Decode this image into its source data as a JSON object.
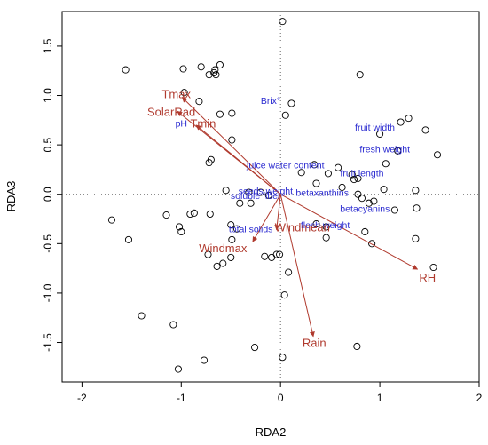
{
  "chart_data": {
    "type": "scatter",
    "title": "",
    "xlabel": "RDA2",
    "ylabel": "RDA3",
    "xlim": [
      -2.2,
      2.0
    ],
    "ylim": [
      -1.9,
      1.85
    ],
    "xticks": [
      -2,
      -1,
      0,
      1,
      2
    ],
    "yticks": [
      -1.5,
      -1.0,
      -0.5,
      0.0,
      0.5,
      1.0,
      1.5
    ],
    "xtick_labels": [
      "-2",
      "-1",
      "0",
      "1",
      "2"
    ],
    "ytick_labels": [
      "-1.5",
      "-1.0",
      "-0.5",
      "0.0",
      "0.5",
      "1.0",
      "1.5"
    ],
    "reference_lines": {
      "x": 0,
      "y": 0,
      "style": "dotted"
    },
    "grid": false,
    "colors": {
      "arrows": "#b03a2e",
      "arrow_labels": "#b03a2e",
      "species": "#2a2ad0",
      "points": "#000000"
    },
    "sites": [
      {
        "x": 0.02,
        "y": 1.75
      },
      {
        "x": -1.56,
        "y": 1.26
      },
      {
        "x": -0.98,
        "y": 1.27
      },
      {
        "x": -0.8,
        "y": 1.29
      },
      {
        "x": -0.61,
        "y": 1.31
      },
      {
        "x": -0.66,
        "y": 1.26
      },
      {
        "x": -0.65,
        "y": 1.21
      },
      {
        "x": -0.67,
        "y": 1.23
      },
      {
        "x": -0.72,
        "y": 1.21
      },
      {
        "x": 0.8,
        "y": 1.21
      },
      {
        "x": -0.97,
        "y": 1.03
      },
      {
        "x": -0.82,
        "y": 0.94
      },
      {
        "x": 0.11,
        "y": 0.92
      },
      {
        "x": -0.61,
        "y": 0.81
      },
      {
        "x": -0.49,
        "y": 0.82
      },
      {
        "x": 0.05,
        "y": 0.8
      },
      {
        "x": 1.21,
        "y": 0.73
      },
      {
        "x": 1.29,
        "y": 0.77
      },
      {
        "x": 1.46,
        "y": 0.65
      },
      {
        "x": 1.0,
        "y": 0.61
      },
      {
        "x": 1.06,
        "y": 0.31
      },
      {
        "x": 1.18,
        "y": 0.44
      },
      {
        "x": 1.58,
        "y": 0.4
      },
      {
        "x": -0.49,
        "y": 0.55
      },
      {
        "x": -0.7,
        "y": 0.35
      },
      {
        "x": -0.72,
        "y": 0.32
      },
      {
        "x": 0.34,
        "y": 0.3
      },
      {
        "x": 0.58,
        "y": 0.27
      },
      {
        "x": 0.21,
        "y": 0.22
      },
      {
        "x": 0.48,
        "y": 0.21
      },
      {
        "x": 0.72,
        "y": 0.2
      },
      {
        "x": 0.74,
        "y": 0.15
      },
      {
        "x": 0.62,
        "y": 0.07
      },
      {
        "x": 0.36,
        "y": 0.11
      },
      {
        "x": 0.78,
        "y": 0.16
      },
      {
        "x": 0.94,
        "y": -0.07
      },
      {
        "x": 0.89,
        "y": -0.09
      },
      {
        "x": 1.04,
        "y": 0.05
      },
      {
        "x": 1.36,
        "y": 0.04
      },
      {
        "x": 0.78,
        "y": 0.0
      },
      {
        "x": 0.82,
        "y": -0.04
      },
      {
        "x": -0.55,
        "y": 0.04
      },
      {
        "x": -0.32,
        "y": 0.02
      },
      {
        "x": -0.2,
        "y": 0.02
      },
      {
        "x": -0.12,
        "y": -0.01
      },
      {
        "x": -0.41,
        "y": -0.09
      },
      {
        "x": -0.3,
        "y": -0.09
      },
      {
        "x": -0.91,
        "y": -0.2
      },
      {
        "x": -0.87,
        "y": -0.19
      },
      {
        "x": -0.71,
        "y": -0.2
      },
      {
        "x": -1.15,
        "y": -0.21
      },
      {
        "x": -1.7,
        "y": -0.26
      },
      {
        "x": -0.5,
        "y": -0.31
      },
      {
        "x": -0.44,
        "y": -0.35
      },
      {
        "x": -1.02,
        "y": -0.33
      },
      {
        "x": -1.0,
        "y": -0.38
      },
      {
        "x": -0.49,
        "y": -0.46
      },
      {
        "x": -1.53,
        "y": -0.46
      },
      {
        "x": -0.73,
        "y": -0.61
      },
      {
        "x": -0.5,
        "y": -0.64
      },
      {
        "x": -0.09,
        "y": -0.64
      },
      {
        "x": -0.16,
        "y": -0.63
      },
      {
        "x": -0.04,
        "y": -0.61
      },
      {
        "x": -0.58,
        "y": -0.7
      },
      {
        "x": -0.64,
        "y": -0.73
      },
      {
        "x": 0.08,
        "y": -0.79
      },
      {
        "x": 0.36,
        "y": -0.3
      },
      {
        "x": 0.46,
        "y": -0.44
      },
      {
        "x": 0.85,
        "y": -0.38
      },
      {
        "x": 0.92,
        "y": -0.5
      },
      {
        "x": 1.36,
        "y": -0.45
      },
      {
        "x": 1.54,
        "y": -0.74
      },
      {
        "x": 1.37,
        "y": -0.14
      },
      {
        "x": 1.15,
        "y": -0.16
      },
      {
        "x": 0.04,
        "y": -1.02
      },
      {
        "x": -1.4,
        "y": -1.23
      },
      {
        "x": -1.08,
        "y": -1.32
      },
      {
        "x": -0.26,
        "y": -1.55
      },
      {
        "x": 0.77,
        "y": -1.54
      },
      {
        "x": 0.02,
        "y": -1.65
      },
      {
        "x": -0.77,
        "y": -1.68
      },
      {
        "x": -1.03,
        "y": -1.77
      },
      {
        "x": -0.01,
        "y": -0.61
      },
      {
        "x": 0.46,
        "y": -0.33
      }
    ],
    "species": [
      {
        "label": "Brix°",
        "x": -0.1,
        "y": 0.95
      },
      {
        "label": "pH",
        "x": -1.0,
        "y": 0.72
      },
      {
        "label": "fruit width",
        "x": 0.95,
        "y": 0.68
      },
      {
        "label": "fresh weight",
        "x": 1.05,
        "y": 0.46
      },
      {
        "label": "juice water content",
        "x": 0.05,
        "y": 0.3
      },
      {
        "label": "fruit length",
        "x": 0.82,
        "y": 0.22
      },
      {
        "label": "seeds weight",
        "x": -0.15,
        "y": 0.04
      },
      {
        "label": "betaxanthins",
        "x": 0.42,
        "y": 0.02
      },
      {
        "label": "soluble fiber",
        "x": -0.25,
        "y": -0.01
      },
      {
        "label": "betacyanins",
        "x": 0.85,
        "y": -0.14
      },
      {
        "label": "total solids",
        "x": -0.3,
        "y": -0.35
      },
      {
        "label": "flesh weight",
        "x": 0.45,
        "y": -0.31
      }
    ],
    "env_arrows": [
      {
        "label": "Tmax",
        "x": -0.99,
        "y": 0.98,
        "lx": -1.05,
        "ly": 1.02
      },
      {
        "label": "SolarRad",
        "x": -1.04,
        "y": 0.84,
        "lx": -1.1,
        "ly": 0.84
      },
      {
        "label": "Tmin",
        "x": -0.85,
        "y": 0.7,
        "lx": -0.78,
        "ly": 0.72
      },
      {
        "label": "Windmean",
        "x": -0.04,
        "y": -0.36,
        "lx": 0.22,
        "ly": -0.33
      },
      {
        "label": "Windmax",
        "x": -0.28,
        "y": -0.48,
        "lx": -0.58,
        "ly": -0.54
      },
      {
        "label": "RH",
        "x": 1.38,
        "y": -0.76,
        "lx": 1.48,
        "ly": -0.84
      },
      {
        "label": "Rain",
        "x": 0.33,
        "y": -1.44,
        "lx": 0.34,
        "ly": -1.5
      }
    ]
  }
}
